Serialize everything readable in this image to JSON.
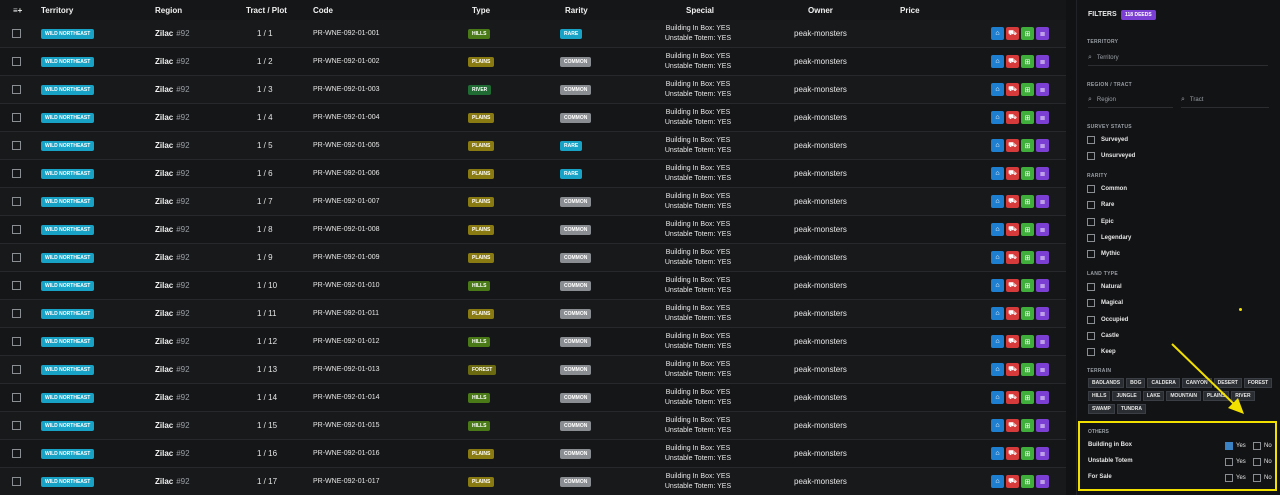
{
  "header": {
    "add_icon": "≡+",
    "territory": "Territory",
    "region": "Region",
    "tract_plot": "Tract / Plot",
    "code": "Code",
    "type": "Type",
    "rarity": "Rarity",
    "special": "Special",
    "owner": "Owner",
    "price": "Price"
  },
  "rows": [
    {
      "territory": "WILD NORTHEAST",
      "region": "Zilac",
      "region_num": "#92",
      "tract_plot": "1 / 1",
      "code": "PR-WNE-092-01-001",
      "type": "HILLS",
      "rarity": "RARE",
      "special1": "Building In Box: YES",
      "special2": "Unstable Totem: YES",
      "owner": "peak-monsters"
    },
    {
      "territory": "WILD NORTHEAST",
      "region": "Zilac",
      "region_num": "#92",
      "tract_plot": "1 / 2",
      "code": "PR-WNE-092-01-002",
      "type": "PLAINS",
      "rarity": "COMMON",
      "special1": "Building In Box: YES",
      "special2": "Unstable Totem: YES",
      "owner": "peak-monsters"
    },
    {
      "territory": "WILD NORTHEAST",
      "region": "Zilac",
      "region_num": "#92",
      "tract_plot": "1 / 3",
      "code": "PR-WNE-092-01-003",
      "type": "RIVER",
      "rarity": "COMMON",
      "special1": "Building In Box: YES",
      "special2": "Unstable Totem: YES",
      "owner": "peak-monsters"
    },
    {
      "territory": "WILD NORTHEAST",
      "region": "Zilac",
      "region_num": "#92",
      "tract_plot": "1 / 4",
      "code": "PR-WNE-092-01-004",
      "type": "PLAINS",
      "rarity": "COMMON",
      "special1": "Building In Box: YES",
      "special2": "Unstable Totem: YES",
      "owner": "peak-monsters"
    },
    {
      "territory": "WILD NORTHEAST",
      "region": "Zilac",
      "region_num": "#92",
      "tract_plot": "1 / 5",
      "code": "PR-WNE-092-01-005",
      "type": "PLAINS",
      "rarity": "RARE",
      "special1": "Building In Box: YES",
      "special2": "Unstable Totem: YES",
      "owner": "peak-monsters"
    },
    {
      "territory": "WILD NORTHEAST",
      "region": "Zilac",
      "region_num": "#92",
      "tract_plot": "1 / 6",
      "code": "PR-WNE-092-01-006",
      "type": "PLAINS",
      "rarity": "RARE",
      "special1": "Building In Box: YES",
      "special2": "Unstable Totem: YES",
      "owner": "peak-monsters"
    },
    {
      "territory": "WILD NORTHEAST",
      "region": "Zilac",
      "region_num": "#92",
      "tract_plot": "1 / 7",
      "code": "PR-WNE-092-01-007",
      "type": "PLAINS",
      "rarity": "COMMON",
      "special1": "Building In Box: YES",
      "special2": "Unstable Totem: YES",
      "owner": "peak-monsters"
    },
    {
      "territory": "WILD NORTHEAST",
      "region": "Zilac",
      "region_num": "#92",
      "tract_plot": "1 / 8",
      "code": "PR-WNE-092-01-008",
      "type": "PLAINS",
      "rarity": "COMMON",
      "special1": "Building In Box: YES",
      "special2": "Unstable Totem: YES",
      "owner": "peak-monsters"
    },
    {
      "territory": "WILD NORTHEAST",
      "region": "Zilac",
      "region_num": "#92",
      "tract_plot": "1 / 9",
      "code": "PR-WNE-092-01-009",
      "type": "PLAINS",
      "rarity": "COMMON",
      "special1": "Building In Box: YES",
      "special2": "Unstable Totem: YES",
      "owner": "peak-monsters"
    },
    {
      "territory": "WILD NORTHEAST",
      "region": "Zilac",
      "region_num": "#92",
      "tract_plot": "1 / 10",
      "code": "PR-WNE-092-01-010",
      "type": "HILLS",
      "rarity": "COMMON",
      "special1": "Building In Box: YES",
      "special2": "Unstable Totem: YES",
      "owner": "peak-monsters"
    },
    {
      "territory": "WILD NORTHEAST",
      "region": "Zilac",
      "region_num": "#92",
      "tract_plot": "1 / 11",
      "code": "PR-WNE-092-01-011",
      "type": "PLAINS",
      "rarity": "COMMON",
      "special1": "Building In Box: YES",
      "special2": "Unstable Totem: YES",
      "owner": "peak-monsters"
    },
    {
      "territory": "WILD NORTHEAST",
      "region": "Zilac",
      "region_num": "#92",
      "tract_plot": "1 / 12",
      "code": "PR-WNE-092-01-012",
      "type": "HILLS",
      "rarity": "COMMON",
      "special1": "Building In Box: YES",
      "special2": "Unstable Totem: YES",
      "owner": "peak-monsters"
    },
    {
      "territory": "WILD NORTHEAST",
      "region": "Zilac",
      "region_num": "#92",
      "tract_plot": "1 / 13",
      "code": "PR-WNE-092-01-013",
      "type": "FOREST",
      "rarity": "COMMON",
      "special1": "Building In Box: YES",
      "special2": "Unstable Totem: YES",
      "owner": "peak-monsters"
    },
    {
      "territory": "WILD NORTHEAST",
      "region": "Zilac",
      "region_num": "#92",
      "tract_plot": "1 / 14",
      "code": "PR-WNE-092-01-014",
      "type": "HILLS",
      "rarity": "COMMON",
      "special1": "Building In Box: YES",
      "special2": "Unstable Totem: YES",
      "owner": "peak-monsters"
    },
    {
      "territory": "WILD NORTHEAST",
      "region": "Zilac",
      "region_num": "#92",
      "tract_plot": "1 / 15",
      "code": "PR-WNE-092-01-015",
      "type": "HILLS",
      "rarity": "COMMON",
      "special1": "Building In Box: YES",
      "special2": "Unstable Totem: YES",
      "owner": "peak-monsters"
    },
    {
      "territory": "WILD NORTHEAST",
      "region": "Zilac",
      "region_num": "#92",
      "tract_plot": "1 / 16",
      "code": "PR-WNE-092-01-016",
      "type": "PLAINS",
      "rarity": "COMMON",
      "special1": "Building In Box: YES",
      "special2": "Unstable Totem: YES",
      "owner": "peak-monsters"
    },
    {
      "territory": "WILD NORTHEAST",
      "region": "Zilac",
      "region_num": "#92",
      "tract_plot": "1 / 17",
      "code": "PR-WNE-092-01-017",
      "type": "PLAINS",
      "rarity": "COMMON",
      "special1": "Building In Box: YES",
      "special2": "Unstable Totem: YES",
      "owner": "peak-monsters"
    }
  ],
  "type_colors": {
    "HILLS": "#4a7a18",
    "PLAINS": "#8a7a12",
    "RIVER": "#1f6b33",
    "FOREST": "#6b6a10"
  },
  "rarity_colors": {
    "RARE": "#17a2c6",
    "COMMON": "#8a8d92"
  },
  "action_colors": [
    "#1e7fd1",
    "#d63a3a",
    "#3fae3a",
    "#7b3fd4"
  ],
  "action_icons": [
    "house-icon",
    "cart-icon",
    "map-icon",
    "details-icon"
  ],
  "sidebar": {
    "title": "FILTERS",
    "badge": "118 DEEDS",
    "territory_label": "TERRITORY",
    "territory_placeholder": "Territory",
    "region_label": "REGION / TRACT",
    "region_placeholder": "Region",
    "tract_placeholder": "Tract",
    "survey_label": "SURVEY STATUS",
    "survey": [
      "Surveyed",
      "Unsurveyed"
    ],
    "rarity_label": "RARITY",
    "rarity": [
      "Common",
      "Rare",
      "Epic",
      "Legendary",
      "Mythic"
    ],
    "land_label": "LAND TYPE",
    "land": [
      "Natural",
      "Magical",
      "Occupied",
      "Castle",
      "Keep"
    ],
    "terrain_label": "TERRAIN",
    "terrain": [
      "BADLANDS",
      "BOG",
      "CALDERA",
      "CANYON",
      "DESERT",
      "FOREST",
      "HILLS",
      "JUNGLE",
      "LAKE",
      "MOUNTAIN",
      "PLAINS",
      "RIVER",
      "SWAMP",
      "TUNDRA"
    ],
    "others_label": "OTHERS",
    "others": [
      {
        "label": "Building in Box",
        "yes": "Yes",
        "no": "No",
        "yes_checked": true
      },
      {
        "label": "Unstable Totem",
        "yes": "Yes",
        "no": "No",
        "yes_checked": false
      },
      {
        "label": "For Sale",
        "yes": "Yes",
        "no": "No",
        "yes_checked": false
      }
    ]
  }
}
